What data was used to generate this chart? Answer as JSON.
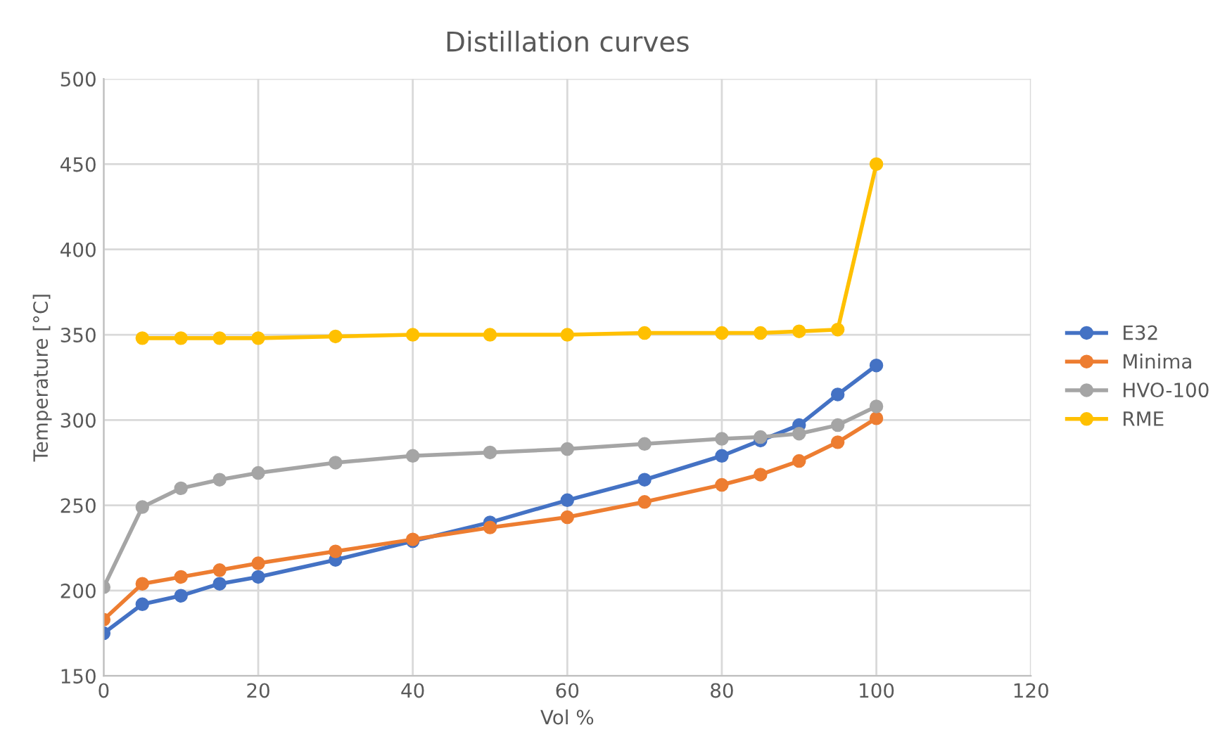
{
  "chart_data": {
    "type": "line",
    "title": "Distillation curves",
    "xlabel": "Vol %",
    "ylabel": "Temperature [°C]",
    "x": [
      0,
      5,
      10,
      15,
      20,
      30,
      40,
      50,
      60,
      70,
      80,
      85,
      90,
      95,
      100
    ],
    "series": [
      {
        "name": "E32",
        "color": "#4472c4",
        "values": [
          175,
          192,
          197,
          204,
          208,
          218,
          229,
          240,
          253,
          265,
          279,
          288,
          297,
          315,
          332
        ]
      },
      {
        "name": "Minima",
        "color": "#ed7d31",
        "values": [
          183,
          204,
          208,
          212,
          216,
          223,
          230,
          237,
          243,
          252,
          262,
          268,
          276,
          287,
          301
        ]
      },
      {
        "name": "HVO-100",
        "color": "#a5a5a5",
        "values": [
          202,
          249,
          260,
          265,
          269,
          275,
          279,
          281,
          283,
          286,
          289,
          290,
          292,
          297,
          308
        ]
      },
      {
        "name": "RME",
        "color": "#ffc000",
        "values": [
          null,
          348,
          348,
          348,
          348,
          349,
          350,
          350,
          350,
          351,
          351,
          351,
          352,
          353,
          450
        ]
      }
    ],
    "xlim": [
      0,
      120
    ],
    "xticks": [
      0,
      20,
      40,
      60,
      80,
      100,
      120
    ],
    "ylim": [
      150,
      500
    ],
    "yticks": [
      150,
      200,
      250,
      300,
      350,
      400,
      450,
      500
    ],
    "grid": true,
    "legend": "right",
    "marker": "circle",
    "line_style": "solid"
  }
}
